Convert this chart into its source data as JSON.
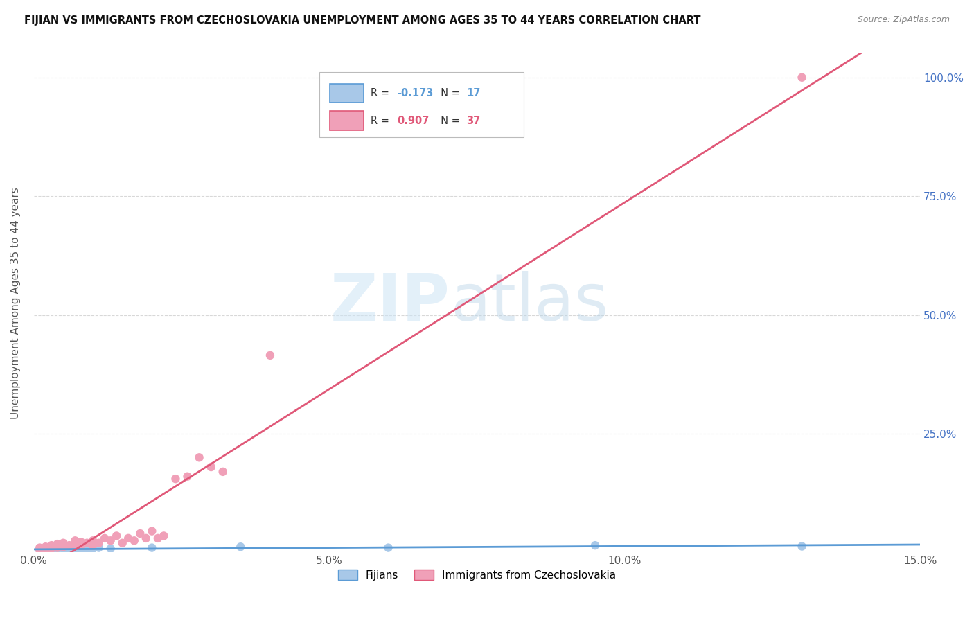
{
  "title": "FIJIAN VS IMMIGRANTS FROM CZECHOSLOVAKIA UNEMPLOYMENT AMONG AGES 35 TO 44 YEARS CORRELATION CHART",
  "source": "Source: ZipAtlas.com",
  "ylabel": "Unemployment Among Ages 35 to 44 years",
  "xlim": [
    0.0,
    0.15
  ],
  "ylim": [
    0.0,
    1.05
  ],
  "xtick_labels": [
    "0.0%",
    "5.0%",
    "10.0%",
    "15.0%"
  ],
  "xtick_vals": [
    0.0,
    0.05,
    0.1,
    0.15
  ],
  "ytick_right_labels": [
    "25.0%",
    "50.0%",
    "75.0%",
    "100.0%"
  ],
  "ytick_right_vals": [
    0.25,
    0.5,
    0.75,
    1.0
  ],
  "fijian_dot_color": "#a8c8e8",
  "czech_dot_color": "#f0a0b8",
  "fijian_trend_color": "#5b9bd5",
  "czech_trend_color": "#e05878",
  "fijian_R": -0.173,
  "fijian_N": 17,
  "czech_R": 0.907,
  "czech_N": 37,
  "fijian_R_color": "#5b9bd5",
  "czech_R_color": "#e05878",
  "legend_label_fijian": "Fijians",
  "legend_label_czech": "Immigrants from Czechoslovakia",
  "watermark_zip": "ZIP",
  "watermark_atlas": "atlas",
  "background_color": "#ffffff",
  "grid_color": "#d8d8d8",
  "fijian_scatter_x": [
    0.001,
    0.002,
    0.003,
    0.004,
    0.005,
    0.006,
    0.007,
    0.008,
    0.009,
    0.01,
    0.011,
    0.013,
    0.02,
    0.035,
    0.06,
    0.095,
    0.13
  ],
  "fijian_scatter_y": [
    0.005,
    0.006,
    0.005,
    0.007,
    0.008,
    0.006,
    0.005,
    0.007,
    0.006,
    0.008,
    0.01,
    0.008,
    0.01,
    0.012,
    0.01,
    0.015,
    0.013
  ],
  "czech_scatter_x": [
    0.001,
    0.001,
    0.002,
    0.002,
    0.003,
    0.003,
    0.004,
    0.004,
    0.005,
    0.005,
    0.006,
    0.007,
    0.007,
    0.008,
    0.008,
    0.009,
    0.01,
    0.01,
    0.011,
    0.012,
    0.013,
    0.014,
    0.015,
    0.016,
    0.017,
    0.018,
    0.019,
    0.02,
    0.021,
    0.022,
    0.024,
    0.026,
    0.028,
    0.03,
    0.032,
    0.04,
    0.13
  ],
  "czech_scatter_y": [
    0.005,
    0.01,
    0.006,
    0.012,
    0.008,
    0.015,
    0.01,
    0.018,
    0.012,
    0.02,
    0.015,
    0.018,
    0.025,
    0.016,
    0.022,
    0.02,
    0.015,
    0.025,
    0.02,
    0.03,
    0.025,
    0.035,
    0.02,
    0.03,
    0.025,
    0.04,
    0.03,
    0.045,
    0.03,
    0.035,
    0.155,
    0.16,
    0.2,
    0.18,
    0.17,
    0.415,
    1.0
  ]
}
